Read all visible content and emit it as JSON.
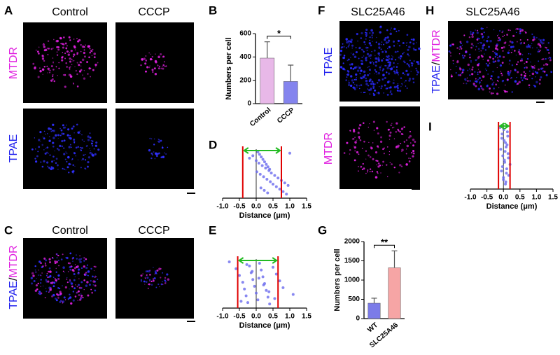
{
  "panels": {
    "A": {
      "label": "A",
      "columns": [
        "Control",
        "CCCP"
      ],
      "rows": [
        "MTDR",
        "TPAE"
      ]
    },
    "B": {
      "label": "B"
    },
    "C": {
      "label": "C",
      "columns": [
        "Control",
        "CCCP"
      ],
      "row_parts": [
        "TPAE",
        "/",
        "MTDR"
      ]
    },
    "D": {
      "label": "D"
    },
    "E": {
      "label": "E"
    },
    "F": {
      "label": "F",
      "title": "SLC25A46",
      "rows": [
        "TPAE",
        "MTDR"
      ]
    },
    "G": {
      "label": "G"
    },
    "H": {
      "label": "H",
      "title": "SLC25A46",
      "row_parts": [
        "TPAE",
        "/",
        "MTDR"
      ]
    },
    "I": {
      "label": "I"
    }
  },
  "chart_data": [
    {
      "type": "bar",
      "categories": [
        "Control",
        "CCCP"
      ],
      "values": [
        390,
        190
      ],
      "errors": [
        140,
        140
      ],
      "colors": [
        "#e8b8e8",
        "#8484ee"
      ],
      "ylim": [
        0,
        600
      ],
      "yticks": [
        0,
        200,
        400,
        600
      ],
      "ylabel": "Numbers per cell",
      "significance": "*"
    },
    {
      "type": "scatter",
      "x": [
        0.05,
        0.1,
        0.15,
        0.2,
        0.25,
        0.3,
        0.35,
        0.4,
        0.02,
        0.12,
        0.22,
        0.32,
        0.42,
        0.5,
        0.6,
        0.7,
        0.8,
        0.9,
        1.0,
        -0.1,
        -0.2,
        0.0,
        0.08,
        0.18,
        0.28,
        0.38,
        0.45,
        0.55,
        0.65,
        0.75,
        0.85,
        0.95,
        0.14,
        0.24,
        0.34
      ],
      "xlim": [
        -1,
        1.5
      ],
      "xticks": [
        {
          "value": -1,
          "label": "-1.0"
        },
        -0.5,
        {
          "value": 0,
          "label": "0.0"
        },
        0.5,
        {
          "value": 1,
          "label": "1.0"
        },
        1.5
      ],
      "xlabel": "Distance (μm)",
      "color": "#6a6aee",
      "bounds": [
        -0.4,
        0.75
      ],
      "bounds_color": "#e00000",
      "arrow_color": "#22bb22"
    },
    {
      "type": "scatter",
      "x": [
        -0.8,
        -0.6,
        -0.5,
        -0.4,
        -0.35,
        -0.3,
        -0.25,
        -0.2,
        -0.15,
        -0.1,
        -0.05,
        0.0,
        0.05,
        0.1,
        0.15,
        0.2,
        0.25,
        0.3,
        0.35,
        0.4,
        0.5,
        0.6,
        0.7,
        0.8,
        1.1,
        -0.45,
        -0.28,
        -0.12,
        0.08,
        0.22,
        0.38,
        0.55
      ],
      "xlim": [
        -1,
        1.5
      ],
      "xticks": [
        {
          "value": -1,
          "label": "-1.0"
        },
        -0.5,
        {
          "value": 0,
          "label": "0.0"
        },
        0.5,
        {
          "value": 1,
          "label": "1.0"
        },
        1.5
      ],
      "xlabel": "Distance (μm)",
      "color": "#6a6aee",
      "bounds": [
        -0.55,
        0.65
      ],
      "bounds_color": "#e00000",
      "arrow_color": "#22bb22"
    },
    {
      "type": "bar",
      "categories": [
        "WT",
        "SLC25A46"
      ],
      "values": [
        400,
        1320
      ],
      "errors": [
        130,
        440
      ],
      "colors": [
        "#7b7be8",
        "#f6a5a5"
      ],
      "ylim": [
        0,
        2000
      ],
      "yticks": [
        0,
        500,
        1000,
        1500,
        2000
      ],
      "ylabel": "Numbers per cell",
      "significance": "**"
    },
    {
      "type": "scatter",
      "x": [
        -0.1,
        -0.08,
        -0.06,
        -0.04,
        -0.02,
        0.0,
        0.02,
        0.04,
        0.06,
        0.08,
        0.1,
        0.12,
        0.14,
        0.16,
        -0.05,
        0.03,
        0.07,
        0.11,
        -0.03,
        0.01,
        0.05,
        0.09,
        0.13,
        0.15,
        0.0,
        0.06,
        0.2
      ],
      "xlim": [
        -1,
        1.5
      ],
      "xticks": [
        {
          "value": -1,
          "label": "-1.0"
        },
        -0.5,
        {
          "value": 0,
          "label": "0.0"
        },
        0.5,
        {
          "value": 1,
          "label": "1.0"
        },
        1.5
      ],
      "xlabel": "Distance (μm)",
      "color": "#6a6aee",
      "bounds": [
        -0.15,
        0.2
      ],
      "bounds_color": "#e00000",
      "arrow_color": "#22bb22"
    }
  ]
}
